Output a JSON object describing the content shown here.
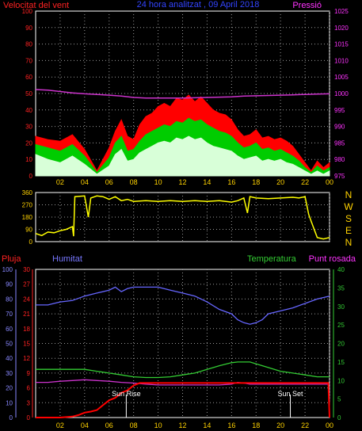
{
  "colors": {
    "background": "#000000",
    "grid": "#9a9a9a",
    "wind_max": "#ff0000",
    "wind_avg": "#00cc00",
    "wind_min": "#d8ffd8",
    "pressure": "#cc33cc",
    "direction": "#ffff00",
    "rain": "#ff0000",
    "humidity": "#6666ff",
    "temperature": "#33cc33",
    "dewpoint": "#cc33cc",
    "sun": "#ffffff",
    "axis_left_top": "#ff2222",
    "axis_right_top": "#ff33ff",
    "axis_dir": "#ffd200",
    "axis_temp": "#33cc33",
    "axis_rain": "#ff2222",
    "axis_hum": "#8888ff",
    "xticks": "#ffd200",
    "dir_letters": "#ffd200"
  },
  "chart_data": [
    {
      "type": "line",
      "title": "24 hora analitzat , 09 April 2018",
      "ylabel_left": "Velocitat del vent",
      "ylabel_right": "Pressió",
      "ylim_left": [
        0,
        100
      ],
      "ylim_right": [
        975,
        1025
      ],
      "yticks_left": [
        "0",
        "10",
        "20",
        "30",
        "40",
        "50",
        "60",
        "70",
        "80",
        "90",
        "100"
      ],
      "yticks_right": [
        "975",
        "980",
        "985",
        "990",
        "995",
        "1000",
        "1005",
        "1010",
        "1015",
        "1020",
        "1025"
      ],
      "xticks": [
        "02",
        "04",
        "06",
        "08",
        "10",
        "12",
        "14",
        "16",
        "18",
        "20",
        "22",
        "00"
      ],
      "grid": true,
      "series": [
        {
          "name": "wind max",
          "axis": "left",
          "x": [
            0,
            1,
            2,
            3,
            4,
            5,
            6,
            6.5,
            7,
            7.5,
            8,
            8.5,
            9,
            9.5,
            10,
            10.5,
            11,
            11.5,
            12,
            12.5,
            13,
            13.5,
            14,
            14.5,
            15,
            15.5,
            16,
            16.5,
            17,
            17.5,
            18,
            18.5,
            19,
            19.5,
            20,
            20.5,
            21,
            21.5,
            22,
            22.5,
            23,
            23.5,
            24
          ],
          "values": [
            24,
            22,
            21,
            25,
            16,
            3,
            17,
            27,
            34,
            24,
            22,
            31,
            36,
            38,
            42,
            44,
            42,
            47,
            46,
            49,
            45,
            48,
            44,
            40,
            38,
            37,
            34,
            28,
            24,
            25,
            28,
            23,
            24,
            22,
            23,
            21,
            18,
            13,
            8,
            3,
            9,
            5,
            8
          ]
        },
        {
          "name": "wind avg",
          "axis": "left",
          "x": [
            0,
            1,
            2,
            3,
            4,
            5,
            6,
            6.5,
            7,
            7.5,
            8,
            8.5,
            9,
            9.5,
            10,
            10.5,
            11,
            11.5,
            12,
            12.5,
            13,
            13.5,
            14,
            14.5,
            15,
            15.5,
            16,
            16.5,
            17,
            17.5,
            18,
            18.5,
            19,
            19.5,
            20,
            20.5,
            21,
            21.5,
            22,
            22.5,
            23,
            23.5,
            24
          ],
          "values": [
            19,
            17,
            15,
            19,
            12,
            2,
            11,
            20,
            24,
            15,
            16,
            21,
            25,
            27,
            29,
            31,
            30,
            33,
            32,
            35,
            33,
            34,
            31,
            29,
            27,
            26,
            24,
            20,
            17,
            18,
            20,
            16,
            17,
            15,
            16,
            14,
            12,
            9,
            5,
            2,
            6,
            3,
            5
          ]
        },
        {
          "name": "wind min",
          "axis": "left",
          "x": [
            0,
            1,
            2,
            3,
            4,
            5,
            6,
            6.5,
            7,
            7.5,
            8,
            8.5,
            9,
            9.5,
            10,
            10.5,
            11,
            11.5,
            12,
            12.5,
            13,
            13.5,
            14,
            14.5,
            15,
            15.5,
            16,
            16.5,
            17,
            17.5,
            18,
            18.5,
            19,
            19.5,
            20,
            20.5,
            21,
            21.5,
            22,
            22.5,
            23,
            23.5,
            24
          ],
          "values": [
            13,
            10,
            8,
            12,
            7,
            1,
            6,
            13,
            16,
            9,
            10,
            14,
            16,
            18,
            20,
            21,
            20,
            23,
            22,
            24,
            22,
            23,
            20,
            18,
            17,
            16,
            15,
            12,
            10,
            11,
            12,
            9,
            10,
            9,
            10,
            8,
            7,
            5,
            3,
            1,
            3,
            1,
            3
          ]
        },
        {
          "name": "pressure",
          "axis": "right",
          "x": [
            0,
            1,
            2,
            3,
            4,
            5,
            6,
            7,
            8,
            9,
            10,
            11,
            12,
            13,
            14,
            15,
            16,
            17,
            18,
            19,
            20,
            21,
            22,
            23,
            24
          ],
          "values": [
            1001.2,
            1001.0,
            1000.6,
            1000.2,
            999.9,
            999.7,
            999.5,
            999.2,
            998.8,
            998.6,
            998.6,
            998.6,
            998.6,
            998.7,
            998.8,
            998.9,
            999.0,
            999.2,
            999.3,
            999.4,
            999.5,
            999.6,
            999.7,
            999.8,
            999.9
          ]
        }
      ]
    },
    {
      "type": "line",
      "ylim": [
        0,
        360
      ],
      "yticks": [
        "0",
        "90",
        "180",
        "270",
        "360"
      ],
      "direction_letters": [
        "N",
        "W",
        "S",
        "E",
        "N"
      ],
      "xticks": [
        "02",
        "04",
        "06",
        "08",
        "10",
        "12",
        "14",
        "16",
        "18",
        "20",
        "22",
        "00"
      ],
      "grid": true,
      "series": [
        {
          "name": "direction",
          "x": [
            0,
            0.5,
            1,
            1.5,
            2,
            2.5,
            3,
            3.1,
            3.2,
            4,
            4.3,
            4.5,
            5,
            5.5,
            6,
            6.5,
            7,
            7.5,
            8,
            9,
            10,
            11,
            12,
            13,
            14,
            15,
            16,
            16.5,
            17,
            17.3,
            17.5,
            18,
            19,
            20,
            21,
            21.5,
            22,
            22.3,
            22.5,
            23,
            23.5,
            24
          ],
          "values": [
            60,
            45,
            70,
            65,
            80,
            90,
            110,
            40,
            330,
            335,
            180,
            320,
            335,
            330,
            310,
            330,
            300,
            310,
            295,
            300,
            295,
            300,
            295,
            300,
            295,
            300,
            290,
            300,
            320,
            210,
            330,
            320,
            315,
            320,
            325,
            320,
            330,
            200,
            150,
            30,
            20,
            30
          ]
        }
      ]
    },
    {
      "type": "line",
      "ylabel_rain": "Pluja",
      "ylabel_hum": "Humitat",
      "ylabel_temp": "Temperatura",
      "ylabel_dew": "Punt rosada",
      "ylim_rain": [
        0,
        30
      ],
      "ylim_hum": [
        0,
        100
      ],
      "ylim_temp": [
        0,
        40
      ],
      "yticks_hum": [
        "0",
        "10",
        "20",
        "30",
        "40",
        "50",
        "60",
        "70",
        "80",
        "90",
        "100"
      ],
      "yticks_rain": [
        "0",
        "3",
        "6",
        "9",
        "12",
        "15",
        "18",
        "21",
        "24",
        "27",
        "30"
      ],
      "yticks_temp": [
        "0",
        "5",
        "10",
        "15",
        "20",
        "25",
        "30",
        "35",
        "40"
      ],
      "xticks": [
        "02",
        "04",
        "06",
        "08",
        "10",
        "12",
        "14",
        "16",
        "18",
        "20",
        "22",
        "00"
      ],
      "annotations": [
        {
          "text": "Sun Rise",
          "x": 7.4
        },
        {
          "text": "Sun Set",
          "x": 20.8
        }
      ],
      "grid": true,
      "series": [
        {
          "name": "humidity",
          "axis": "hum",
          "x": [
            0,
            1,
            2,
            3,
            4,
            5,
            6,
            6.5,
            7,
            7.5,
            8,
            9,
            10,
            11,
            12,
            13,
            14,
            15,
            16,
            16.5,
            17,
            17.5,
            18,
            18.5,
            19,
            20,
            21,
            22,
            23,
            24
          ],
          "values": [
            76,
            76,
            78,
            79,
            82,
            84,
            86,
            88,
            85,
            87,
            88,
            88,
            88,
            86,
            84,
            82,
            78,
            73,
            70,
            66,
            64,
            63,
            64,
            66,
            70,
            72,
            74,
            77,
            80,
            82
          ]
        },
        {
          "name": "temperature",
          "axis": "temp",
          "x": [
            0,
            1,
            2,
            3,
            4,
            5,
            6,
            7,
            8,
            9,
            10,
            11,
            12,
            13,
            14,
            15,
            16,
            16.5,
            17,
            17.5,
            18,
            19,
            20,
            21,
            22,
            23,
            24
          ],
          "values": [
            13,
            13,
            13,
            13,
            13,
            12.5,
            12,
            11.5,
            11,
            10.8,
            10.8,
            11,
            11.5,
            12,
            13,
            14,
            14.8,
            15,
            15,
            15,
            14.5,
            13.5,
            12.5,
            12,
            11.5,
            11,
            11
          ]
        },
        {
          "name": "dewpoint",
          "axis": "temp",
          "x": [
            0,
            1,
            2,
            3,
            4,
            5,
            6,
            7,
            8,
            9,
            10,
            11,
            12,
            13,
            14,
            15,
            16,
            16.5,
            17,
            17.5,
            18,
            19,
            20,
            21,
            22,
            23,
            24
          ],
          "values": [
            9.5,
            9.5,
            9.8,
            10,
            10.2,
            10,
            9.8,
            9.5,
            9.3,
            9,
            8.8,
            8.8,
            8.8,
            8.8,
            8.8,
            8.8,
            9,
            9.5,
            9.3,
            9,
            9,
            9,
            9,
            9,
            9,
            9,
            9
          ]
        },
        {
          "name": "rain",
          "axis": "rain",
          "x": [
            0,
            1,
            2,
            3,
            3.5,
            4,
            4.5,
            5,
            5.5,
            6,
            6.5,
            7,
            7.5,
            8,
            8.5,
            9,
            10,
            11,
            12,
            13,
            14,
            15,
            16,
            17,
            18,
            19,
            20,
            21,
            22,
            23,
            23.9,
            24
          ],
          "values": [
            0,
            0,
            0,
            0.2,
            0.5,
            1,
            1.2,
            1.5,
            2.5,
            3.5,
            4,
            5,
            5.5,
            6.5,
            7,
            7,
            7,
            7,
            7,
            7,
            7,
            7,
            7,
            7,
            7,
            7,
            7,
            7,
            7,
            7,
            7,
            0
          ]
        }
      ]
    }
  ]
}
